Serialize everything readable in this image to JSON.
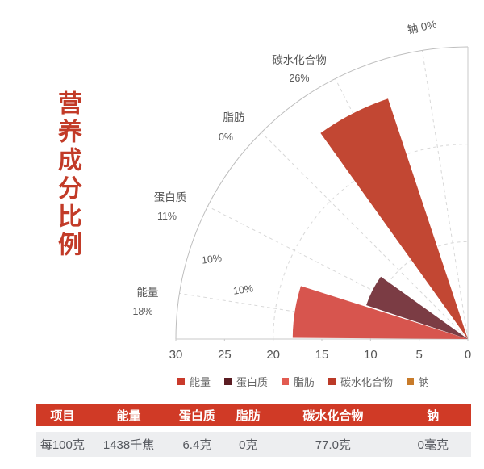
{
  "title": {
    "text": "营养成分比例",
    "color": "#C23B28"
  },
  "chart_data": {
    "type": "bar",
    "layout": "polar-rose-quarter",
    "title": "营养成分比例",
    "categories": [
      "能量",
      "蛋白质",
      "脂肪",
      "碳水化合物",
      "钠"
    ],
    "values": [
      18,
      11,
      0,
      26,
      0
    ],
    "value_unit": "%",
    "percent_labels": [
      "18%",
      "11%",
      "0%",
      "26%",
      "0%"
    ],
    "radial_axis": {
      "min": 0,
      "max": 30,
      "tick_labels": [
        "30",
        "25",
        "20",
        "15",
        "10",
        "5",
        "0"
      ]
    },
    "grid_labels": [
      "10%",
      "10%"
    ],
    "grid": "dashed",
    "legend_position": "bottom",
    "legend_colors": [
      "#C93A2B",
      "#5B1C22",
      "#E25B51",
      "#BB3A28",
      "#C87B2A"
    ],
    "wedge_colors": [
      "#D7554E",
      "#7B3C44",
      "#E9908A",
      "#C24733",
      "#D1924F"
    ]
  },
  "legend": {
    "items": [
      {
        "label": "能量",
        "color": "#C93A2B"
      },
      {
        "label": "蛋白质",
        "color": "#5B1C22"
      },
      {
        "label": "脂肪",
        "color": "#E25B51"
      },
      {
        "label": "碳水化合物",
        "color": "#BB3A28"
      },
      {
        "label": "钠",
        "color": "#C87B2A"
      }
    ]
  },
  "table": {
    "headers": [
      "项目",
      "能量",
      "蛋白质",
      "脂肪",
      "碳水化合物",
      "钠"
    ],
    "rows": [
      [
        "每100克",
        "1438千焦",
        "6.4克",
        "0克",
        "77.0克",
        "0毫克"
      ]
    ],
    "header_bg": "#D03A26",
    "header_text_color": "#FFFFFF",
    "row_bg": "#EDEEF0",
    "row_text_color": "#55585E"
  }
}
